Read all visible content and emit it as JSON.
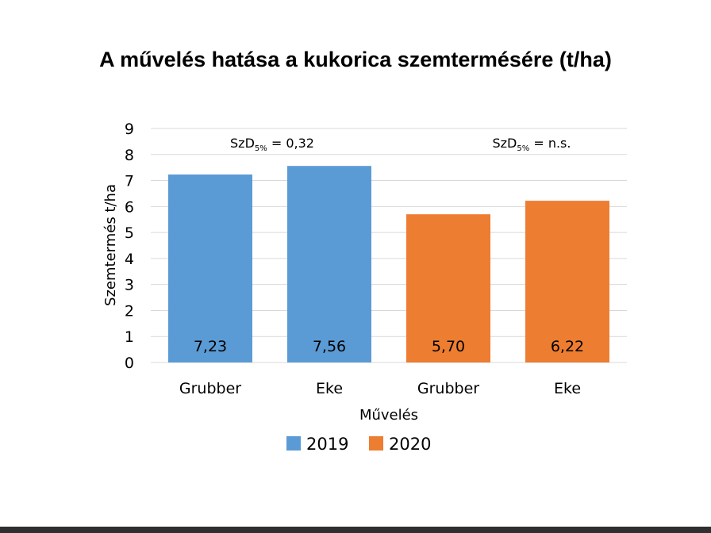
{
  "title": "A művelés hatása a kukorica szemtermésére (t/ha)",
  "chart_data": {
    "type": "bar",
    "title": "A művelés hatása a kukorica szemtermésére (t/ha)",
    "xlabel": "Művelés",
    "ylabel": "Szemtermés t/ha",
    "ylim": [
      0,
      9
    ],
    "yticks": [
      "0",
      "1",
      "2",
      "3",
      "4",
      "5",
      "6",
      "7",
      "8",
      "9"
    ],
    "grid": true,
    "legend_position": "bottom",
    "groups": [
      {
        "series": "2019",
        "annotation": {
          "prefix": "SzD",
          "sub": "5%",
          "suffix": " = 0,32"
        },
        "bars": [
          {
            "category": "Grubber",
            "value": 7.23,
            "label": "7,23"
          },
          {
            "category": "Eke",
            "value": 7.56,
            "label": "7,56"
          }
        ]
      },
      {
        "series": "2020",
        "annotation": {
          "prefix": "SzD",
          "sub": "5%",
          "suffix": " = n.s."
        },
        "bars": [
          {
            "category": "Grubber",
            "value": 5.7,
            "label": "5,70"
          },
          {
            "category": "Eke",
            "value": 6.22,
            "label": "6,22"
          }
        ]
      }
    ],
    "series": [
      {
        "name": "2019",
        "color": "#5b9bd5"
      },
      {
        "name": "2020",
        "color": "#ed7d31"
      }
    ],
    "gridline_color": "#d9d9d9"
  }
}
